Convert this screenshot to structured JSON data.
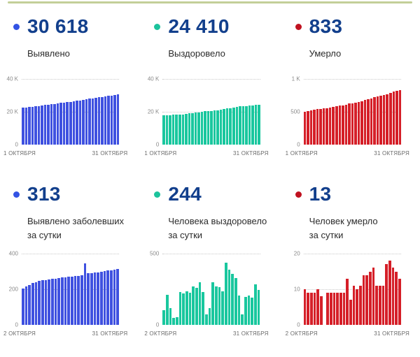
{
  "accent_bar_color": "#c3cf98",
  "panels": [
    {
      "value": "30 618",
      "label_line1": "Выявлено",
      "label_line2": "",
      "dot_color": "#3353e4"
    },
    {
      "value": "24 410",
      "label_line1": "Выздоровело",
      "label_line2": "",
      "dot_color": "#1cc39c"
    },
    {
      "value": "833",
      "label_line1": "Умерло",
      "label_line2": "",
      "dot_color": "#c01220"
    },
    {
      "value": "313",
      "label_line1": "Выявлено заболевших",
      "label_line2": "за сутки",
      "dot_color": "#3353e4"
    },
    {
      "value": "244",
      "label_line1": "Человека выздоровело",
      "label_line2": "за сутки",
      "dot_color": "#1cc39c"
    },
    {
      "value": "13",
      "label_line1": "Человек умерло",
      "label_line2": "за сутки",
      "dot_color": "#c01220"
    }
  ],
  "chart_data": [
    {
      "type": "bar",
      "title": "Выявлено (всего)",
      "color": "#3f51e0",
      "x_first": "1 ОКТЯБРЯ",
      "x_last": "31 ОКТЯБРЯ",
      "y_max": 40000,
      "y_ticks": [
        {
          "label": "40 K",
          "value": 40000
        },
        {
          "label": "20 K",
          "value": 20000
        },
        {
          "label": "0",
          "value": 0
        }
      ],
      "values": [
        22469,
        22674,
        22889,
        23114,
        23348,
        23589,
        23836,
        24086,
        24338,
        24593,
        24850,
        25110,
        25372,
        25637,
        25904,
        26173,
        26444,
        26717,
        26992,
        27272,
        27617,
        27906,
        28197,
        28491,
        28787,
        29086,
        29387,
        29691,
        29997,
        30305,
        30618
      ]
    },
    {
      "type": "bar",
      "title": "Выздоровело (всего)",
      "color": "#19c79e",
      "x_first": "1 ОКТЯБРЯ",
      "x_last": "31 ОКТЯБРЯ",
      "y_max": 40000,
      "y_ticks": [
        {
          "label": "40 K",
          "value": 40000
        },
        {
          "label": "20 K",
          "value": 20000
        },
        {
          "label": "0",
          "value": 0
        }
      ],
      "values": [
        17726,
        17831,
        18041,
        18161,
        18211,
        18266,
        18496,
        18716,
        18951,
        19176,
        19446,
        19706,
        20006,
        20236,
        20311,
        20431,
        20731,
        21001,
        21266,
        21501,
        21936,
        22321,
        22681,
        23011,
        23216,
        23291,
        23486,
        23691,
        23881,
        24166,
        24410
      ]
    },
    {
      "type": "bar",
      "title": "Умерло (всего)",
      "color": "#d51f28",
      "x_first": "1 ОКТЯБРЯ",
      "x_last": "31 ОКТЯБРЯ",
      "y_max": 1000,
      "y_ticks": [
        {
          "label": "1 K",
          "value": 1000
        },
        {
          "label": "500",
          "value": 500
        },
        {
          "label": "0",
          "value": 0
        }
      ],
      "values": [
        501,
        511,
        520,
        529,
        538,
        548,
        556,
        556,
        565,
        574,
        583,
        592,
        601,
        610,
        623,
        630,
        641,
        651,
        662,
        676,
        690,
        705,
        721,
        732,
        743,
        754,
        771,
        789,
        805,
        820,
        833
      ]
    },
    {
      "type": "bar",
      "title": "Выявлено заболевших за сутки",
      "color": "#3f51e0",
      "x_first": "2 ОКТЯБРЯ",
      "x_last": "31 ОКТЯБРЯ",
      "y_max": 400,
      "y_ticks": [
        {
          "label": "400",
          "value": 400
        },
        {
          "label": "200",
          "value": 200
        },
        {
          "label": "0",
          "value": 0
        }
      ],
      "values": [
        205,
        215,
        225,
        234,
        241,
        247,
        250,
        252,
        255,
        257,
        260,
        262,
        265,
        267,
        269,
        271,
        273,
        275,
        280,
        345,
        289,
        291,
        294,
        296,
        299,
        301,
        304,
        306,
        308,
        313
      ]
    },
    {
      "type": "bar",
      "title": "Человека выздоровело за сутки",
      "color": "#19c79e",
      "x_first": "2 ОКТЯБРЯ",
      "x_last": "31 ОКТЯБРЯ",
      "y_max": 500,
      "y_ticks": [
        {
          "label": "500",
          "value": 500
        },
        {
          "label": "0",
          "value": 0
        }
      ],
      "values": [
        105,
        210,
        120,
        50,
        55,
        230,
        220,
        235,
        225,
        270,
        260,
        300,
        230,
        75,
        120,
        300,
        270,
        265,
        235,
        435,
        385,
        360,
        330,
        205,
        75,
        195,
        205,
        190,
        285,
        244
      ]
    },
    {
      "type": "bar",
      "title": "Человек умерло за сутки",
      "color": "#d51f28",
      "x_first": "2 ОКТЯБРЯ",
      "x_last": "31 ОКТЯБРЯ",
      "y_max": 20,
      "y_ticks": [
        {
          "label": "20",
          "value": 20
        },
        {
          "label": "10",
          "value": 10
        },
        {
          "label": "0",
          "value": 0
        }
      ],
      "values": [
        10,
        9,
        9,
        9,
        10,
        8,
        0,
        9,
        9,
        9,
        9,
        9,
        9,
        13,
        7,
        11,
        10,
        11,
        14,
        14,
        15,
        16,
        11,
        11,
        11,
        17,
        18,
        16,
        15,
        13
      ]
    }
  ]
}
